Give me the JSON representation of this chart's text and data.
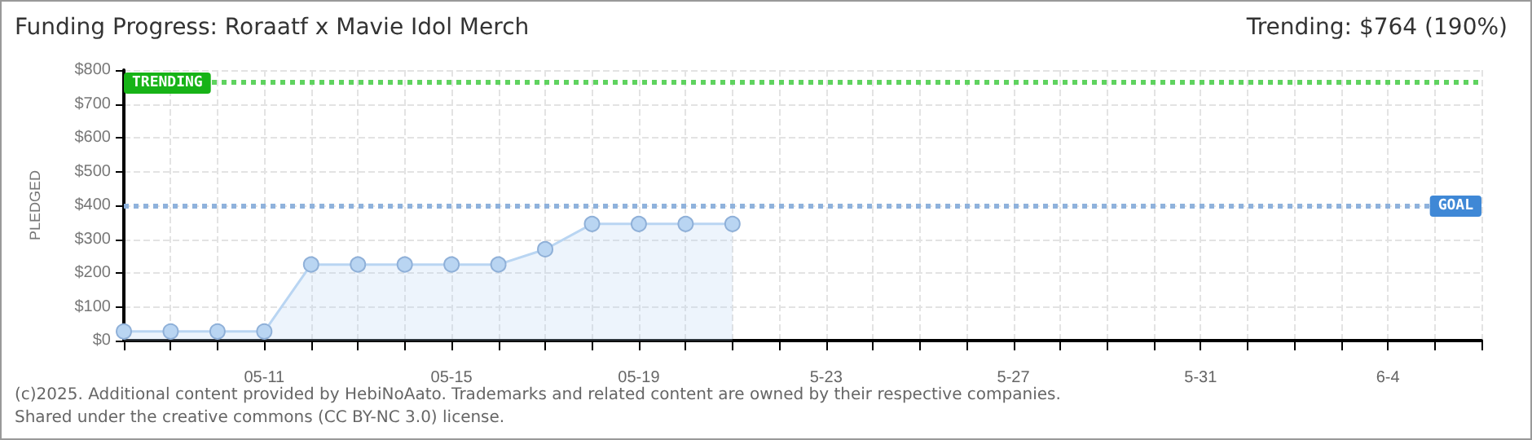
{
  "chart_data": {
    "type": "area",
    "title": "Funding Progress: Roraatf x Mavie Idol Merch",
    "ylabel": "PLEDGED",
    "annotations": [
      "Trending: $764 (190%)",
      "(c)2025. Additional content provided by HebiNoAato. Trademarks and related content are owned by their respective companies.",
      "Shared under the creative commons (CC BY-NC 3.0) license."
    ],
    "x": [
      "--05-08",
      "--05-09",
      "--05-10",
      "--05-11",
      "--05-12",
      "--05-13",
      "--05-14",
      "--05-15",
      "--05-16",
      "--05-17",
      "--05-18",
      "--05-19",
      "--05-20",
      "--05-21"
    ],
    "series": [
      {
        "color": "#b9d5f2",
        "values": [
          27,
          27,
          27,
          27,
          225,
          225,
          225,
          225,
          225,
          270,
          345,
          345,
          345,
          345
        ]
      }
    ],
    "xlim": [
      "--05-08",
      "--06-06"
    ],
    "xticks": [
      {
        "value": "--05-08",
        "label": null
      },
      {
        "value": "--05-09",
        "label": null
      },
      {
        "value": "--05-10",
        "label": null
      },
      {
        "value": "--05-11",
        "label": "05-11"
      },
      {
        "value": "--05-12",
        "label": null
      },
      {
        "value": "--05-13",
        "label": null
      },
      {
        "value": "--05-14",
        "label": null
      },
      {
        "value": "--05-15",
        "label": "05-15"
      },
      {
        "value": "--05-16",
        "label": null
      },
      {
        "value": "--05-17",
        "label": null
      },
      {
        "value": "--05-18",
        "label": null
      },
      {
        "value": "--05-19",
        "label": "05-19"
      },
      {
        "value": "--05-20",
        "label": null
      },
      {
        "value": "--05-21",
        "label": null
      },
      {
        "value": "--05-22",
        "label": null
      },
      {
        "value": "--05-23",
        "label": "5-23"
      },
      {
        "value": "--05-24",
        "label": null
      },
      {
        "value": "--05-25",
        "label": null
      },
      {
        "value": "--05-26",
        "label": null
      },
      {
        "value": "--05-27",
        "label": "5-27"
      },
      {
        "value": "--05-28",
        "label": null
      },
      {
        "value": "--05-29",
        "label": null
      },
      {
        "value": "--05-30",
        "label": null
      },
      {
        "value": "--05-31",
        "label": "5-31"
      },
      {
        "value": "--06-01",
        "label": null
      },
      {
        "value": "--06-02",
        "label": null
      },
      {
        "value": "--06-03",
        "label": null
      },
      {
        "value": "--06-04",
        "label": "6-4"
      },
      {
        "value": "--06-05",
        "label": null
      },
      {
        "value": "--06-06",
        "label": null
      }
    ],
    "ylim": [
      0,
      800
    ],
    "yticks": [
      {
        "value": 0,
        "label": "$0"
      },
      {
        "value": 100,
        "label": "$100"
      },
      {
        "value": 200,
        "label": "$200"
      },
      {
        "value": 300,
        "label": "$300"
      },
      {
        "value": 400,
        "label": "$400"
      },
      {
        "value": 500,
        "label": "$500"
      },
      {
        "value": 600,
        "label": "$600"
      },
      {
        "value": 700,
        "label": "$700"
      },
      {
        "value": 800,
        "label": "$800"
      }
    ],
    "ref_lines": [
      {
        "axis": "y",
        "value": 764,
        "label": "TRENDING",
        "color": "#5fd35f",
        "line_style": "dotted"
      },
      {
        "axis": "y",
        "value": 400,
        "label": "GOAL",
        "color": "#8fb2dc",
        "line_style": "dotted"
      }
    ],
    "grid": true,
    "marker": "circle"
  }
}
